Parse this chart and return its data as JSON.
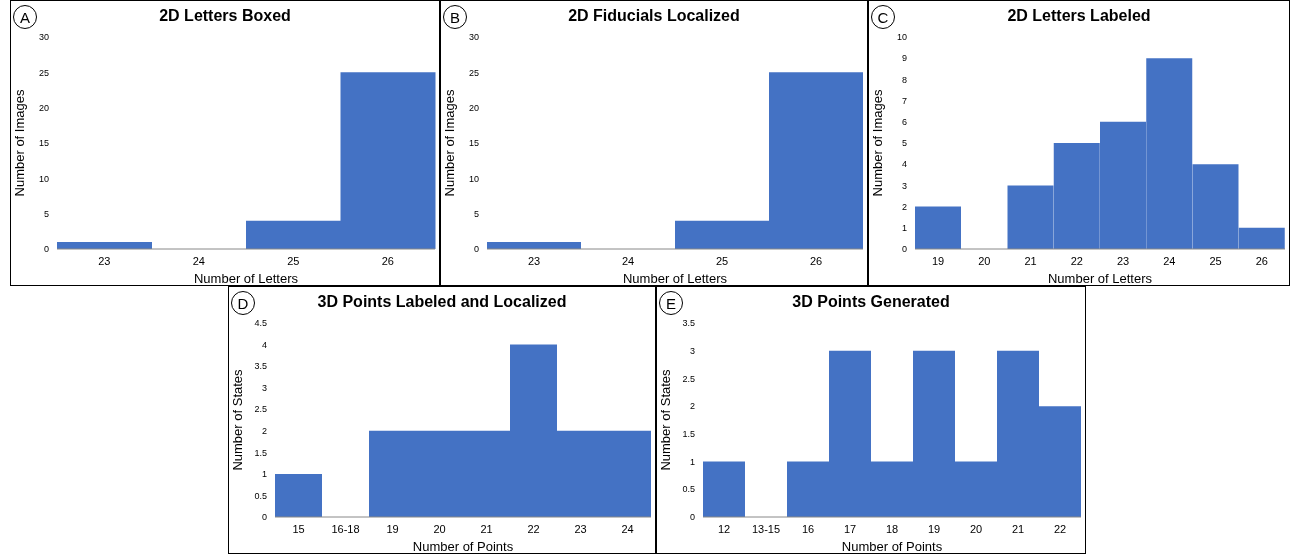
{
  "chart_data": [
    {
      "type": "bar",
      "title": "2D Letters Boxed",
      "annotations": [
        "A"
      ],
      "xlabel": "Number of Letters",
      "ylabel": "Number of Images",
      "categories": [
        "23",
        "24",
        "25",
        "26"
      ],
      "values": [
        1,
        0,
        4,
        25
      ],
      "color": "#4472c4",
      "ylim": [
        0,
        30
      ],
      "yticks": [
        0,
        5,
        10,
        15,
        20,
        25,
        30
      ],
      "grid": false,
      "legend": false
    },
    {
      "type": "bar",
      "title": "2D Fiducials Localized",
      "annotations": [
        "B"
      ],
      "xlabel": "Number of Letters",
      "ylabel": "Number of Images",
      "categories": [
        "23",
        "24",
        "25",
        "26"
      ],
      "values": [
        1,
        0,
        4,
        25
      ],
      "color": "#4472c4",
      "ylim": [
        0,
        30
      ],
      "yticks": [
        0,
        5,
        10,
        15,
        20,
        25,
        30
      ],
      "grid": false,
      "legend": false
    },
    {
      "type": "bar",
      "title": "2D Letters Labeled",
      "annotations": [
        "C"
      ],
      "xlabel": "Number of Letters",
      "ylabel": "Number of Images",
      "categories": [
        "19",
        "20",
        "21",
        "22",
        "23",
        "24",
        "25",
        "26"
      ],
      "values": [
        2,
        0,
        3,
        5,
        6,
        9,
        4,
        1
      ],
      "color": "#4472c4",
      "ylim": [
        0,
        10
      ],
      "yticks": [
        0,
        1,
        2,
        3,
        4,
        5,
        6,
        7,
        8,
        9,
        10
      ],
      "grid": false,
      "legend": false
    },
    {
      "type": "bar",
      "title": "3D Points Labeled and Localized",
      "annotations": [
        "D"
      ],
      "xlabel": "Number of Points",
      "ylabel": "Number of States",
      "categories": [
        "15",
        "16-18",
        "19",
        "20",
        "21",
        "22",
        "23",
        "24"
      ],
      "values": [
        1,
        0,
        2,
        2,
        2,
        4,
        2,
        2
      ],
      "color": "#4472c4",
      "ylim": [
        0,
        4.5
      ],
      "yticks": [
        0,
        0.5,
        1,
        1.5,
        2,
        2.5,
        3,
        3.5,
        4,
        4.5
      ],
      "grid": false,
      "legend": false
    },
    {
      "type": "bar",
      "title": "3D Points Generated",
      "annotations": [
        "E"
      ],
      "xlabel": "Number of Points",
      "ylabel": "Number of States",
      "categories": [
        "12",
        "13-15",
        "16",
        "17",
        "18",
        "19",
        "20",
        "21",
        "22"
      ],
      "values": [
        1,
        0,
        1,
        3,
        1,
        3,
        1,
        3,
        2
      ],
      "color": "#4472c4",
      "ylim": [
        0,
        3.5
      ],
      "yticks": [
        0,
        0.5,
        1,
        1.5,
        2,
        2.5,
        3,
        3.5
      ],
      "grid": false,
      "legend": false
    }
  ]
}
